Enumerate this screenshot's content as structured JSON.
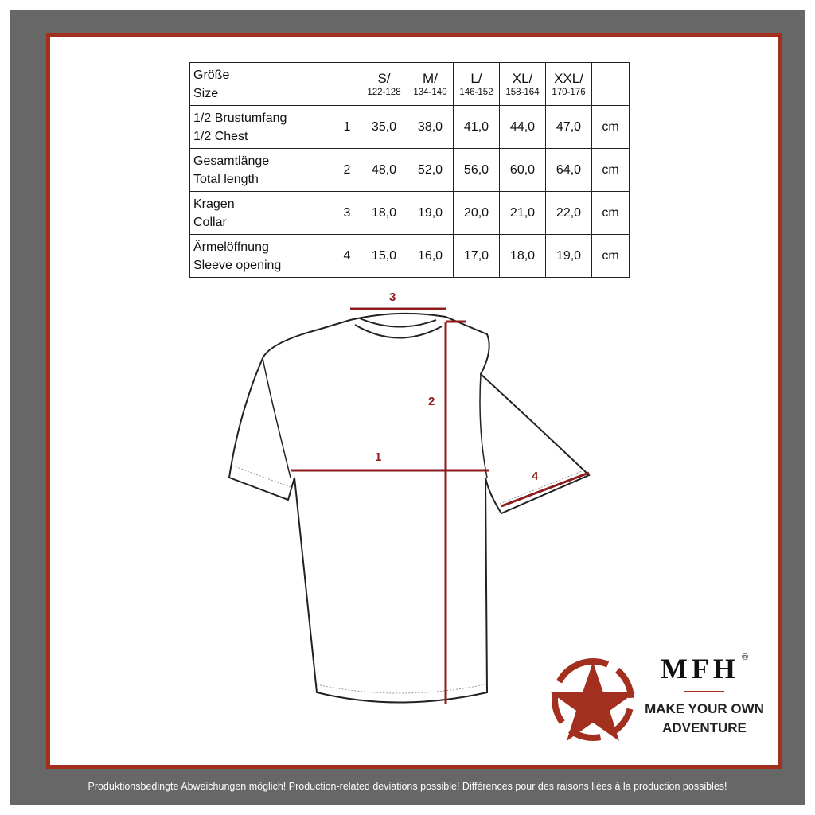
{
  "table": {
    "header_label": [
      "Größe",
      "Size"
    ],
    "sizes": [
      {
        "name": "S/",
        "range": "122-128"
      },
      {
        "name": "M/",
        "range": "134-140"
      },
      {
        "name": "L/",
        "range": "146-152"
      },
      {
        "name": "XL/",
        "range": "158-164"
      },
      {
        "name": "XXL/",
        "range": "170-176"
      }
    ],
    "rows": [
      {
        "de": "1/2 Brustumfang",
        "en": "1/2 Chest",
        "num": "1",
        "values": [
          "35,0",
          "38,0",
          "41,0",
          "44,0",
          "47,0"
        ],
        "unit": "cm"
      },
      {
        "de": "Gesamtlänge",
        "en": "Total length",
        "num": "2",
        "values": [
          "48,0",
          "52,0",
          "56,0",
          "60,0",
          "64,0"
        ],
        "unit": "cm"
      },
      {
        "de": "Kragen",
        "en": "Collar",
        "num": "3",
        "values": [
          "18,0",
          "19,0",
          "20,0",
          "21,0",
          "22,0"
        ],
        "unit": "cm"
      },
      {
        "de": "Ärmelöffnung",
        "en": "Sleeve opening",
        "num": "4",
        "values": [
          "15,0",
          "16,0",
          "17,0",
          "18,0",
          "19,0"
        ],
        "unit": "cm"
      }
    ]
  },
  "diagram": {
    "labels": [
      "1",
      "2",
      "3",
      "4"
    ],
    "line_color": "#8e1c1c"
  },
  "logo": {
    "brand": "MFH",
    "reg": "®",
    "slogan1": "MAKE YOUR OWN",
    "slogan2": "ADVENTURE",
    "color": "#a3301f"
  },
  "footer": "Produktionsbedingte Abweichungen möglich! Production-related deviations possible! Différences pour des raisons liées à la production possibles!"
}
